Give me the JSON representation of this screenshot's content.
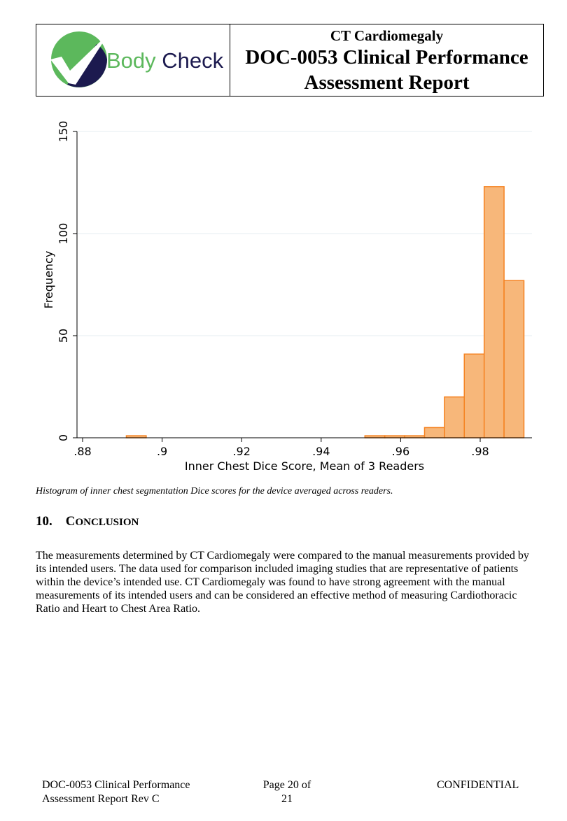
{
  "header": {
    "logo_word1": "Body",
    "logo_word2": "Check",
    "subtitle": "CT Cardiomegaly",
    "title_line1": "DOC-0053 Clinical Performance",
    "title_line2": "Assessment Report"
  },
  "chart_data": {
    "type": "bar",
    "subtype": "histogram",
    "xlabel": "Inner Chest Dice Score, Mean of 3 Readers",
    "ylabel": "Frequency",
    "xlim": [
      0.877,
      0.992
    ],
    "ylim": [
      0,
      150
    ],
    "xticks": [
      ".88",
      ".9",
      ".92",
      ".94",
      ".96",
      ".98"
    ],
    "xtick_values": [
      0.88,
      0.9,
      0.92,
      0.94,
      0.96,
      0.98
    ],
    "yticks": [
      "0",
      "50",
      "100",
      "150"
    ],
    "ytick_values": [
      0,
      50,
      100,
      150
    ],
    "grid": true,
    "bin_width": 0.005,
    "bins": [
      {
        "start": 0.891,
        "count": 1
      },
      {
        "start": 0.951,
        "count": 1
      },
      {
        "start": 0.956,
        "count": 1
      },
      {
        "start": 0.961,
        "count": 1
      },
      {
        "start": 0.966,
        "count": 5
      },
      {
        "start": 0.971,
        "count": 20
      },
      {
        "start": 0.976,
        "count": 41
      },
      {
        "start": 0.981,
        "count": 123
      },
      {
        "start": 0.986,
        "count": 77
      }
    ],
    "bar_color": "#f7b77a",
    "edge_color": "#f58220"
  },
  "caption": "Histogram of inner chest segmentation Dice scores for the device averaged across readers.",
  "section": {
    "number": "10.",
    "title_first": "C",
    "title_rest": "ONCLUSION"
  },
  "paragraph": "The measurements determined by CT Cardiomegaly were compared to the manual measurements provided by its intended users. The data used for comparison included imaging studies that are representative of patients within the device’s intended use. CT Cardiomegaly was found to have strong agreement with the manual measurements of its intended users and can be considered an effective method of measuring Cardiothoracic Ratio and Heart to Chest Area Ratio.",
  "footer": {
    "doc_line1": "DOC-0053 Clinical Performance",
    "doc_line2": "Assessment Report Rev C",
    "page_line1": "Page 20 of",
    "page_line2": "21",
    "confidential": "CONFIDENTIAL"
  },
  "colors": {
    "logo_green": "#5cb85c",
    "logo_navy": "#1c1a4f"
  }
}
